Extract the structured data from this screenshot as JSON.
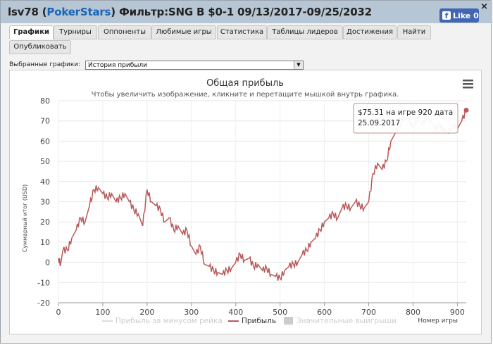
{
  "header": {
    "player": "lsv78",
    "site": "PokerStars",
    "filter": "Фильтр:SNG B $0-1 09/13/2017-09/25/2032",
    "close": "×",
    "like_label": "Like 0",
    "like_icon": "f"
  },
  "tabs": [
    {
      "label": "Графики",
      "active": true
    },
    {
      "label": "Турниры",
      "active": false
    },
    {
      "label": "Оппоненты",
      "active": false
    },
    {
      "label": "Любимые игры",
      "active": false
    },
    {
      "label": "Статистика",
      "active": false
    },
    {
      "label": "Таблицы лидеров",
      "active": false
    },
    {
      "label": "Достижения",
      "active": false
    },
    {
      "label": "Найти",
      "active": false
    },
    {
      "label": "Опубликовать",
      "active": false
    }
  ],
  "graph_select": {
    "label": "Выбранные графики:",
    "value": "История прибыли",
    "arrow": "▼"
  },
  "chart_data": {
    "type": "line",
    "title": "Общая прибыль",
    "subtitle": "Чтобы увеличить изображение, кликните и перетащите мышкой внутрь графика.",
    "ylabel": "Суммарный итог (USD)",
    "xlabel": "Номер игры",
    "xlim": [
      0,
      920
    ],
    "ylim": [
      -20,
      80
    ],
    "xticks": [
      0,
      100,
      200,
      300,
      400,
      500,
      600,
      700,
      800,
      900
    ],
    "yticks": [
      -20,
      -10,
      0,
      10,
      20,
      30,
      40,
      50,
      60,
      70,
      80
    ],
    "grid": true,
    "legend_position": "bottom",
    "series": [
      {
        "name": "Прибыль за минусом рейка",
        "color": "#dddddd",
        "visible": false
      },
      {
        "name": "Прибыль",
        "color": "#b85a5a",
        "visible": true,
        "points": [
          [
            0,
            2
          ],
          [
            5,
            -1
          ],
          [
            10,
            6
          ],
          [
            20,
            6
          ],
          [
            30,
            12
          ],
          [
            40,
            16
          ],
          [
            50,
            22
          ],
          [
            60,
            20
          ],
          [
            70,
            28
          ],
          [
            80,
            36
          ],
          [
            90,
            37
          ],
          [
            100,
            34
          ],
          [
            110,
            32
          ],
          [
            120,
            34
          ],
          [
            130,
            30
          ],
          [
            140,
            32
          ],
          [
            150,
            34
          ],
          [
            160,
            30
          ],
          [
            170,
            26
          ],
          [
            180,
            24
          ],
          [
            190,
            18
          ],
          [
            200,
            36
          ],
          [
            210,
            30
          ],
          [
            220,
            28
          ],
          [
            230,
            26
          ],
          [
            240,
            20
          ],
          [
            250,
            22
          ],
          [
            260,
            16
          ],
          [
            270,
            18
          ],
          [
            280,
            14
          ],
          [
            290,
            16
          ],
          [
            300,
            8
          ],
          [
            310,
            4
          ],
          [
            320,
            8
          ],
          [
            330,
            -1
          ],
          [
            340,
            -2
          ],
          [
            350,
            -4
          ],
          [
            360,
            -5
          ],
          [
            370,
            -6
          ],
          [
            380,
            -4
          ],
          [
            390,
            -3
          ],
          [
            400,
            0
          ],
          [
            410,
            4
          ],
          [
            420,
            1
          ],
          [
            430,
            2
          ],
          [
            440,
            -2
          ],
          [
            450,
            -1
          ],
          [
            460,
            -4
          ],
          [
            470,
            -3
          ],
          [
            480,
            -6
          ],
          [
            490,
            -7
          ],
          [
            500,
            -8
          ],
          [
            510,
            -4
          ],
          [
            520,
            -2
          ],
          [
            530,
            -1
          ],
          [
            540,
            0
          ],
          [
            550,
            4
          ],
          [
            560,
            6
          ],
          [
            570,
            10
          ],
          [
            580,
            12
          ],
          [
            590,
            16
          ],
          [
            600,
            20
          ],
          [
            610,
            22
          ],
          [
            620,
            24
          ],
          [
            630,
            22
          ],
          [
            640,
            27
          ],
          [
            650,
            28
          ],
          [
            660,
            27
          ],
          [
            670,
            30
          ],
          [
            680,
            28
          ],
          [
            690,
            27
          ],
          [
            700,
            30
          ],
          [
            710,
            44
          ],
          [
            720,
            49
          ],
          [
            730,
            46
          ],
          [
            740,
            50
          ],
          [
            750,
            60
          ],
          [
            760,
            64
          ],
          [
            770,
            68
          ],
          [
            780,
            72
          ],
          [
            790,
            70
          ],
          [
            800,
            67
          ],
          [
            810,
            71
          ],
          [
            820,
            68
          ],
          [
            830,
            72
          ],
          [
            840,
            70
          ],
          [
            850,
            66
          ],
          [
            860,
            68
          ],
          [
            870,
            66
          ],
          [
            880,
            64
          ],
          [
            890,
            68
          ],
          [
            900,
            66
          ],
          [
            910,
            70
          ],
          [
            920,
            75.31
          ]
        ]
      },
      {
        "name": "Значительные выигрыши",
        "color": "#cccccc",
        "visible": false
      }
    ],
    "tooltip": {
      "line1": "$75.31 на игре 920 дата",
      "line2": "25.09.2017"
    }
  }
}
